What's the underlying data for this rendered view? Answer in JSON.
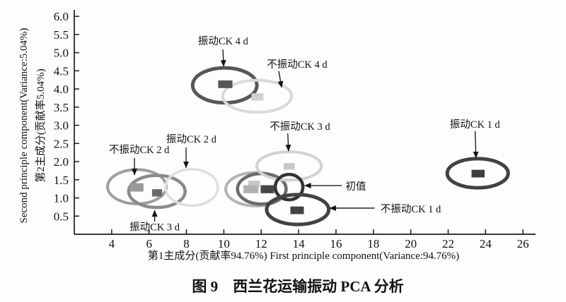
{
  "figure": {
    "caption": "图 9　西兰花运输振动 PCA 分析"
  },
  "chart_data": {
    "type": "scatter",
    "title": "图 9　西兰花运输振动 PCA 分析",
    "xlabel": "第1主成分(贡献率94.76%) First principle component(Variance:94.76%)",
    "ylabel_cn": "第2主成分(贡献率5.04%)",
    "ylabel_en": "Second principle component(Variance:5.04%)",
    "xlim": [
      2,
      26.6
    ],
    "ylim": [
      0,
      6.1
    ],
    "xticks": [
      4,
      6,
      8,
      10,
      12,
      14,
      16,
      18,
      20,
      22,
      24,
      26
    ],
    "yticks": [
      0.5,
      1.0,
      1.5,
      2.0,
      2.5,
      3.0,
      3.5,
      4.0,
      4.5,
      5.0,
      5.5,
      6.0
    ],
    "grid": false,
    "legend": "none",
    "axis_color": "#1c1c1c",
    "text_color": "#111111",
    "ellipses": [
      {
        "group": "振动CK 4 d",
        "cx": 10.05,
        "cy": 4.1,
        "rx": 1.72,
        "ry": 0.48,
        "color": "#575757",
        "lw": 5
      },
      {
        "group": "不振动CK 4 d",
        "cx": 11.78,
        "cy": 3.8,
        "rx": 1.84,
        "ry": 0.44,
        "color": "#d9d9d9",
        "lw": 4
      },
      {
        "group": "不振动CK 2 d",
        "cx": 5.35,
        "cy": 1.31,
        "rx": 1.57,
        "ry": 0.47,
        "color": "#9e9e9e",
        "lw": 4
      },
      {
        "group": "振动CK 3 d",
        "cx": 6.42,
        "cy": 1.18,
        "rx": 1.51,
        "ry": 0.44,
        "color": "#8a8a8a",
        "lw": 4.5
      },
      {
        "group": "振动CK 2 d",
        "cx": 8.28,
        "cy": 1.29,
        "rx": 1.4,
        "ry": 0.5,
        "color": "#dedede",
        "lw": 3.5
      },
      {
        "group": "cluster-ring-outer",
        "cx": 11.72,
        "cy": 1.24,
        "rx": 1.62,
        "ry": 0.46,
        "color": "#b3b3b3",
        "lw": 4
      },
      {
        "group": "cluster-ring-inner",
        "cx": 12.03,
        "cy": 1.25,
        "rx": 1.3,
        "ry": 0.42,
        "color": "#6b6b6b",
        "lw": 4.5
      },
      {
        "group": "不振动CK 3 d",
        "cx": 13.49,
        "cy": 1.88,
        "rx": 1.73,
        "ry": 0.39,
        "color": "#d2d2d2",
        "lw": 4
      },
      {
        "group": "初值",
        "cx": 13.49,
        "cy": 1.3,
        "rx": 0.74,
        "ry": 0.35,
        "color": "#333333",
        "lw": 4.5
      },
      {
        "group": "不振动CK 1 d",
        "cx": 13.95,
        "cy": 0.68,
        "rx": 1.66,
        "ry": 0.41,
        "color": "#424242",
        "lw": 5
      },
      {
        "group": "振动CK 1 d",
        "cx": 23.58,
        "cy": 1.68,
        "rx": 1.63,
        "ry": 0.4,
        "color": "#424242",
        "lw": 5
      }
    ],
    "markers": [
      {
        "group": "振动CK 4 d",
        "x": 10.08,
        "y": 4.13,
        "w": 0.76,
        "h": 0.21,
        "color": "#555555"
      },
      {
        "group": "不振动CK 4 d",
        "x": 11.8,
        "y": 3.78,
        "w": 0.64,
        "h": 0.2,
        "color": "#d0d0d0"
      },
      {
        "group": "不振动CK 2 d",
        "x": 5.33,
        "y": 1.29,
        "w": 0.74,
        "h": 0.23,
        "color": "#9a9a9a"
      },
      {
        "group": "振动CK 3 d",
        "x": 6.43,
        "y": 1.14,
        "w": 0.54,
        "h": 0.2,
        "color": "#6a6a6a"
      },
      {
        "group": "cluster-light-upper",
        "x": 11.62,
        "y": 1.39,
        "w": 0.62,
        "h": 0.17,
        "color": "#c6c6c6"
      },
      {
        "group": "cluster-light-lower",
        "x": 11.45,
        "y": 1.24,
        "w": 0.8,
        "h": 0.22,
        "color": "#b2b2b2"
      },
      {
        "group": "cluster-dark",
        "x": 12.33,
        "y": 1.24,
        "w": 0.72,
        "h": 0.22,
        "color": "#474747"
      },
      {
        "group": "不振动CK 3 d",
        "x": 13.5,
        "y": 1.87,
        "w": 0.6,
        "h": 0.18,
        "color": "#c9c9c9"
      },
      {
        "group": "不振动CK 1 d",
        "x": 13.92,
        "y": 0.66,
        "w": 0.72,
        "h": 0.21,
        "color": "#424242"
      },
      {
        "group": "振动CK 1 d",
        "x": 23.6,
        "y": 1.67,
        "w": 0.7,
        "h": 0.21,
        "color": "#3d3d3d"
      }
    ],
    "annotations": [
      {
        "text": "振动CK 4 d",
        "tx": 9.96,
        "ty": 5.32,
        "arrow": [
          9.95,
          5.09,
          9.99,
          4.62
        ]
      },
      {
        "text": "不振动CK 4 d",
        "tx": 13.92,
        "ty": 4.68,
        "arrow": [
          12.94,
          4.49,
          13.09,
          4.04
        ]
      },
      {
        "text": "不振动CK 3 d",
        "tx": 14.07,
        "ty": 2.97,
        "arrow": [
          13.42,
          2.78,
          13.46,
          2.29
        ]
      },
      {
        "text": "振动CK 1 d",
        "tx": 23.43,
        "ty": 3.03,
        "arrow": [
          23.44,
          2.84,
          23.49,
          2.1
        ]
      },
      {
        "text": "振动CK 2 d",
        "tx": 8.26,
        "ty": 2.62,
        "arrow": [
          7.98,
          2.39,
          7.98,
          1.83
        ]
      },
      {
        "text": "不振动CK 2 d",
        "tx": 5.47,
        "ty": 2.33,
        "arrow": [
          5.22,
          2.1,
          5.22,
          1.63
        ]
      },
      {
        "text": "振动CK 3 d",
        "tx": 6.3,
        "ty": 0.2,
        "arrow": [
          6.3,
          0.35,
          6.3,
          0.66
        ]
      },
      {
        "text": "初值",
        "tx": 17.06,
        "ty": 1.32,
        "arrow": [
          16.31,
          1.34,
          14.32,
          1.34
        ]
      },
      {
        "text": "不振动CK 1 d",
        "tx": 20.0,
        "ty": 0.7,
        "arrow": [
          18.06,
          0.72,
          15.66,
          0.72
        ]
      }
    ]
  }
}
